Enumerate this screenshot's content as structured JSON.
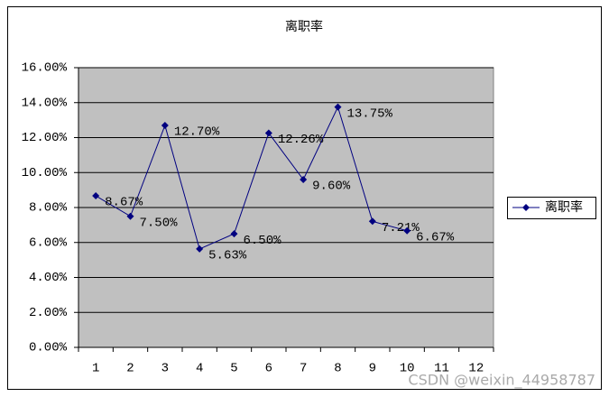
{
  "chart_data": {
    "type": "line",
    "title": "离职率",
    "categories": [
      "1",
      "2",
      "3",
      "4",
      "5",
      "6",
      "7",
      "8",
      "9",
      "10",
      "11",
      "12"
    ],
    "series": [
      {
        "name": "离职率",
        "color": "#000080",
        "values": [
          8.67,
          7.5,
          12.7,
          5.63,
          6.5,
          12.26,
          9.6,
          13.75,
          7.21,
          6.67,
          null,
          null
        ],
        "value_labels": [
          "8.67%",
          "7.50%",
          "12.70%",
          "5.63%",
          "6.50%",
          "12.26%",
          "9.60%",
          "13.75%",
          "7.21%",
          "6.67%",
          null,
          null
        ]
      }
    ],
    "ylim": [
      0,
      16
    ],
    "yticks": [
      {
        "value": 0,
        "label": "0.00%"
      },
      {
        "value": 2,
        "label": "2.00%"
      },
      {
        "value": 4,
        "label": "4.00%"
      },
      {
        "value": 6,
        "label": "6.00%"
      },
      {
        "value": 8,
        "label": "8.00%"
      },
      {
        "value": 10,
        "label": "10.00%"
      },
      {
        "value": 12,
        "label": "12.00%"
      },
      {
        "value": 14,
        "label": "14.00%"
      },
      {
        "value": 16,
        "label": "16.00%"
      }
    ],
    "grid": true,
    "plot_background": "#c0c0c0",
    "legend": "right",
    "watermark": "CSDN @weixin_44958787"
  }
}
